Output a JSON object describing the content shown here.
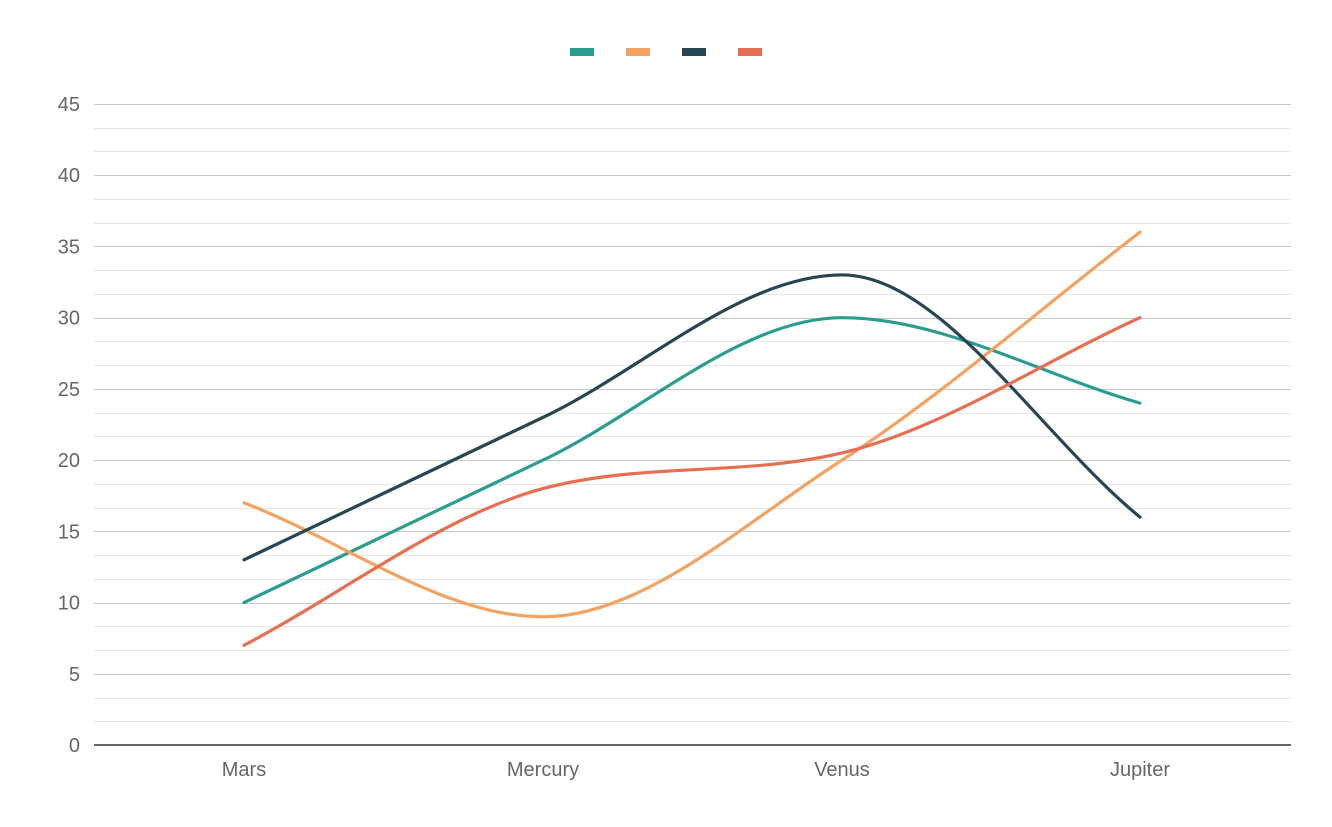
{
  "chart_data": {
    "type": "line",
    "title": "",
    "xlabel": "",
    "ylabel": "",
    "categories": [
      "Mars",
      "Mercury",
      "Venus",
      "Jupiter"
    ],
    "ylim": [
      0,
      45
    ],
    "y_ticks": [
      0,
      5,
      10,
      15,
      20,
      25,
      30,
      35,
      40,
      45
    ],
    "y_minor_step": 1.67,
    "smooth": true,
    "grid": true,
    "legend_position": "top-center",
    "series": [
      {
        "color": "#2a9d8f",
        "values": [
          10,
          20,
          30,
          24
        ]
      },
      {
        "color": "#f4a261",
        "values": [
          17,
          9,
          20,
          36
        ]
      },
      {
        "color": "#264653",
        "values": [
          13,
          23,
          33,
          16
        ]
      },
      {
        "color": "#e76f51",
        "values": [
          7,
          18,
          20.5,
          30
        ]
      }
    ]
  }
}
